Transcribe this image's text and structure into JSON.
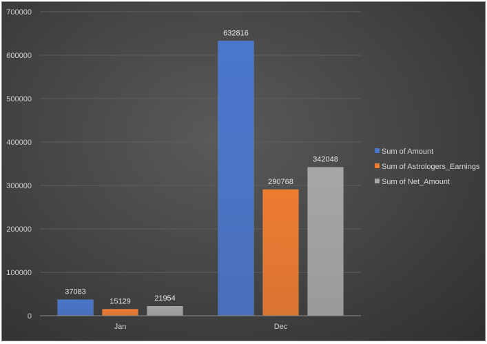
{
  "chart_data": {
    "type": "bar",
    "categories": [
      "Jan",
      "Dec"
    ],
    "series": [
      {
        "name": "Sum of Amount",
        "values": [
          37083,
          632816
        ],
        "color": "#4a76cc"
      },
      {
        "name": "Sum of Astrologers_Earnings",
        "values": [
          15129,
          290768
        ],
        "color": "#ee7b30"
      },
      {
        "name": "Sum of Net_Amount",
        "values": [
          21954,
          342048
        ],
        "color": "#a6a6a6"
      }
    ],
    "y_ticks": [
      "0",
      "100000",
      "200000",
      "300000",
      "400000",
      "500000",
      "600000",
      "700000"
    ],
    "ylim": [
      0,
      700000
    ],
    "grid": true,
    "legend": "right",
    "data_labels": true,
    "background": "#404040"
  }
}
